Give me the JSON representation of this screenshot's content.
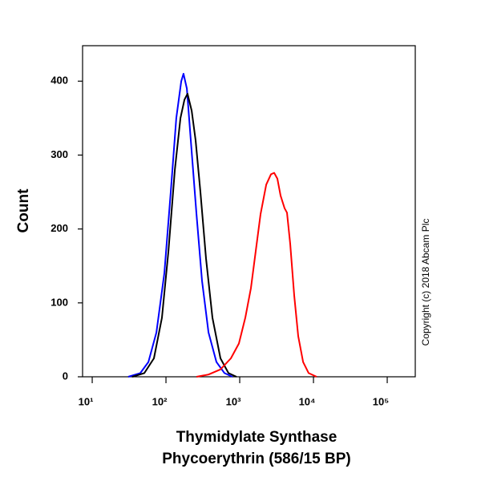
{
  "chart_data": {
    "type": "line",
    "ylabel": "Count",
    "xlabel": [
      "Thymidylate Synthase",
      "Phycoerythrin (586/15 BP)"
    ],
    "annotation": "Copyright (c) 2018 Abcam Plc",
    "xscale": "log",
    "xlim": [
      7.4,
      240000
    ],
    "ylim": [
      0,
      448
    ],
    "xticks": [
      {
        "value": 10,
        "label": "10¹"
      },
      {
        "value": 100,
        "label": "10²"
      },
      {
        "value": 1000,
        "label": "10³"
      },
      {
        "value": 10000,
        "label": "10⁴"
      },
      {
        "value": 100000,
        "label": "10⁵"
      }
    ],
    "yticks": [
      0,
      100,
      200,
      300,
      400
    ],
    "series": [
      {
        "color": "#0000ff",
        "x": [
          30.8,
          44.9,
          57.7,
          74.1,
          95.1,
          116,
          138,
          161,
          173,
          192,
          217,
          259,
          308,
          377,
          484,
          621,
          798
        ],
        "values": [
          0,
          5,
          20,
          60,
          140,
          250,
          350,
          400,
          410,
          390,
          320,
          220,
          130,
          60,
          20,
          5,
          0
        ]
      },
      {
        "color": "#000000",
        "x": [
          34.9,
          50.9,
          68.7,
          88.2,
          108,
          132,
          157,
          178,
          196,
          223,
          252,
          293,
          349,
          427,
          548,
          704,
          905
        ],
        "values": [
          0,
          5,
          25,
          80,
          170,
          280,
          350,
          375,
          383,
          360,
          320,
          250,
          160,
          80,
          25,
          5,
          0
        ]
      },
      {
        "color": "#ff0000",
        "x": [
          259,
          377,
          548,
          759,
          975,
          1191,
          1419,
          1649,
          1918,
          2286,
          2655,
          2933,
          3243,
          3583,
          4061,
          4379,
          4841,
          5487,
          6214,
          7228,
          8610,
          11040
        ],
        "values": [
          0,
          3,
          10,
          25,
          45,
          80,
          120,
          170,
          220,
          260,
          274,
          276,
          268,
          245,
          228,
          222,
          180,
          110,
          55,
          20,
          5,
          0
        ]
      }
    ]
  }
}
